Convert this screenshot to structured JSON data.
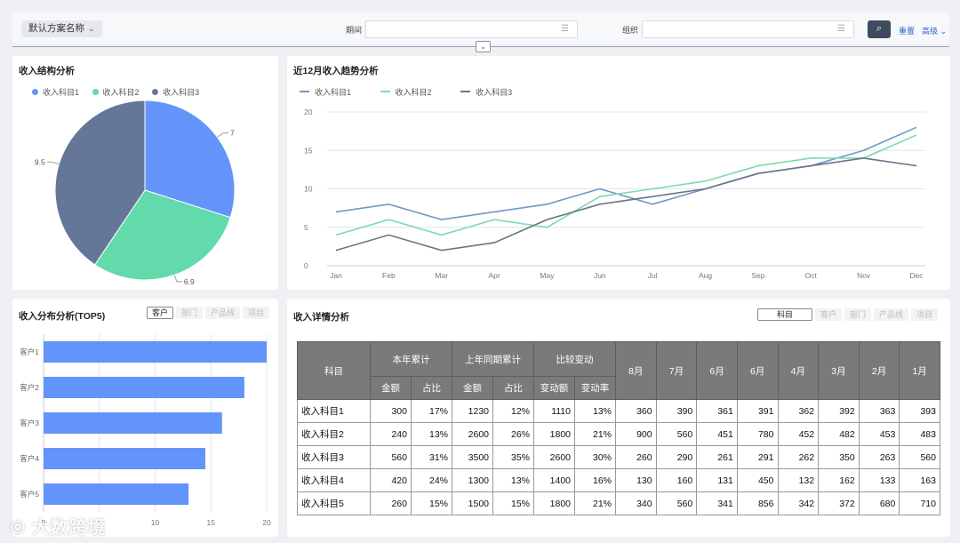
{
  "filter": {
    "scheme_label": "默认方案名称",
    "period_label": "期间",
    "period_value": "",
    "org_label": "组织",
    "org_value": "",
    "reset_label": "重置",
    "advanced_label": "高级"
  },
  "pie": {
    "title": "收入结构分析",
    "legend": [
      "收入科目1",
      "收入科目2",
      "收入科目3"
    ],
    "labels": [
      "7",
      "6.9",
      "9.5"
    ]
  },
  "line": {
    "title": "近12月收入趋势分析",
    "legend": [
      "收入科目1",
      "收入科目2",
      "收入科目3"
    ]
  },
  "bar": {
    "title": "收入分布分析(TOP5)",
    "tabs": [
      "客户",
      "部门",
      "产品线",
      "项目"
    ]
  },
  "detail": {
    "title": "收入详情分析",
    "tabs": [
      "科目",
      "客户",
      "部门",
      "产品线",
      "项目"
    ],
    "header_subject": "科目",
    "header_groups": [
      "本年累计",
      "上年同期累计",
      "比较变动"
    ],
    "header_subs": [
      "金额",
      "占比",
      "金额",
      "占比",
      "变动额",
      "变动率"
    ],
    "header_months": [
      "8月",
      "7月",
      "6月",
      "6月",
      "4月",
      "3月",
      "2月",
      "1月"
    ],
    "rows": [
      {
        "name": "收入科目1",
        "cells": [
          "300",
          "17%",
          "1230",
          "12%",
          "1110",
          "13%",
          "360",
          "390",
          "361",
          "391",
          "362",
          "392",
          "363",
          "393"
        ]
      },
      {
        "name": "收入科目2",
        "cells": [
          "240",
          "13%",
          "2600",
          "26%",
          "1800",
          "21%",
          "900",
          "560",
          "451",
          "780",
          "452",
          "482",
          "453",
          "483"
        ]
      },
      {
        "name": "收入科目3",
        "cells": [
          "560",
          "31%",
          "3500",
          "35%",
          "2600",
          "30%",
          "260",
          "290",
          "261",
          "291",
          "262",
          "350",
          "263",
          "560"
        ]
      },
      {
        "name": "收入科目4",
        "cells": [
          "420",
          "24%",
          "1300",
          "13%",
          "1400",
          "16%",
          "130",
          "160",
          "131",
          "450",
          "132",
          "162",
          "133",
          "163"
        ]
      },
      {
        "name": "收入科目5",
        "cells": [
          "260",
          "15%",
          "1500",
          "15%",
          "1800",
          "21%",
          "340",
          "560",
          "341",
          "856",
          "342",
          "372",
          "680",
          "710"
        ]
      }
    ]
  },
  "watermark": "大数跨境",
  "colors": {
    "series1": "#6394f9",
    "series2": "#62daab",
    "series3": "#657798",
    "line1": "#6f97c9",
    "line2": "#7fd9b3",
    "line3": "#6b7488",
    "bar": "#6394f9"
  },
  "chart_data": [
    {
      "type": "pie",
      "title": "收入结构分析",
      "categories": [
        "收入科目1",
        "收入科目2",
        "收入科目3"
      ],
      "values": [
        7,
        6.9,
        9.5
      ],
      "legend": "top-left"
    },
    {
      "type": "line",
      "title": "近12月收入趋势分析",
      "x": [
        "Jan",
        "Feb",
        "Mar",
        "Apr",
        "May",
        "Jun",
        "Jul",
        "Aug",
        "Sep",
        "Oct",
        "Nov",
        "Dec"
      ],
      "series": [
        {
          "name": "收入科目1",
          "values": [
            7,
            8,
            6,
            7,
            8,
            10,
            8,
            10,
            12,
            13,
            15,
            18
          ]
        },
        {
          "name": "收入科目2",
          "values": [
            4,
            6,
            4,
            6,
            5,
            9,
            10,
            11,
            13,
            14,
            14,
            17
          ]
        },
        {
          "name": "收入科目3",
          "values": [
            2,
            4,
            2,
            3,
            6,
            8,
            9,
            10,
            12,
            13,
            14,
            13
          ]
        }
      ],
      "ylim": [
        0,
        20
      ],
      "yticks": [
        0,
        5,
        10,
        15,
        20
      ],
      "grid": true,
      "legend": "top-left"
    },
    {
      "type": "bar",
      "orientation": "horizontal",
      "title": "收入分布分析(TOP5)",
      "categories": [
        "客户1",
        "客户2",
        "客户3",
        "客户4",
        "客户5"
      ],
      "values": [
        20,
        18,
        16,
        14.5,
        13
      ],
      "xlim": [
        0,
        20
      ],
      "xticks": [
        0,
        5,
        10,
        15,
        20
      ],
      "grid": true
    }
  ]
}
